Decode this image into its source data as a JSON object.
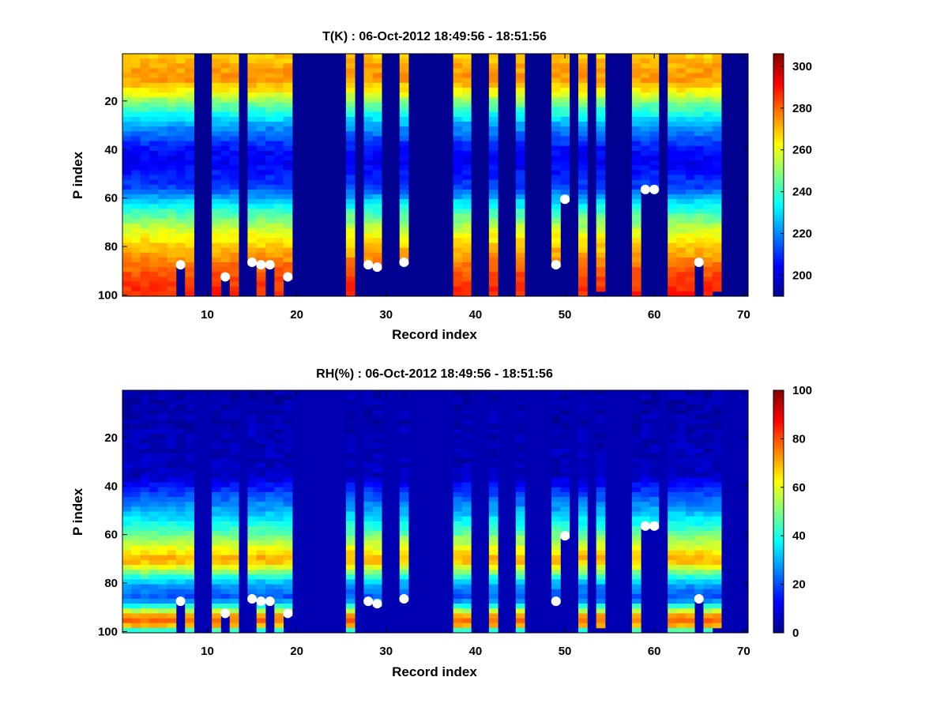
{
  "chart_data": [
    {
      "type": "heatmap",
      "title": "T(K) : 06-Oct-2012 18:49:56 - 18:51:56",
      "xlabel": "Record index",
      "ylabel": "P index",
      "xlim": [
        0.5,
        70.5
      ],
      "ylim": [
        1,
        100
      ],
      "xticks": [
        10,
        20,
        30,
        40,
        50,
        60,
        70
      ],
      "yticks": [
        20,
        40,
        60,
        80,
        100
      ],
      "colorbar": {
        "range": [
          190,
          306
        ],
        "ticks": [
          200,
          220,
          240,
          260,
          280,
          300
        ]
      },
      "background_value": 192,
      "profile_records": [
        1,
        2,
        3,
        4,
        5,
        6,
        7,
        8,
        11,
        12,
        13,
        15,
        16,
        17,
        18,
        19,
        26,
        28,
        29,
        32,
        38,
        39,
        42,
        45,
        49,
        50,
        52,
        54,
        58,
        59,
        60,
        62,
        63,
        64,
        65,
        66,
        67
      ],
      "records_to_index_100": [
        1,
        2,
        3,
        4,
        5,
        6,
        8,
        11,
        13,
        16,
        18,
        26,
        38,
        39,
        42,
        45,
        52,
        58,
        62,
        63,
        64,
        66
      ],
      "profile_shape": {
        "levels": [
          1,
          5,
          10,
          15,
          20,
          30,
          40,
          45,
          55,
          65,
          75,
          85,
          92,
          100
        ],
        "values": [
          268,
          272,
          275,
          265,
          248,
          222,
          205,
          203,
          212,
          240,
          262,
          276,
          284,
          288
        ]
      },
      "markers": [
        {
          "record": 7,
          "p": 88
        },
        {
          "record": 12,
          "p": 93
        },
        {
          "record": 15,
          "p": 87
        },
        {
          "record": 16,
          "p": 88
        },
        {
          "record": 17,
          "p": 88
        },
        {
          "record": 19,
          "p": 93
        },
        {
          "record": 28,
          "p": 88
        },
        {
          "record": 29,
          "p": 89
        },
        {
          "record": 32,
          "p": 87
        },
        {
          "record": 49,
          "p": 88
        },
        {
          "record": 50,
          "p": 61
        },
        {
          "record": 59,
          "p": 57
        },
        {
          "record": 60,
          "p": 57
        },
        {
          "record": 65,
          "p": 87
        }
      ]
    },
    {
      "type": "heatmap",
      "title": "RH(%) : 06-Oct-2012 18:49:56 - 18:51:56",
      "xlabel": "Record index",
      "ylabel": "P index",
      "xlim": [
        0.5,
        70.5
      ],
      "ylim": [
        1,
        100
      ],
      "xticks": [
        10,
        20,
        30,
        40,
        50,
        60,
        70
      ],
      "yticks": [
        20,
        40,
        60,
        80,
        100
      ],
      "colorbar": {
        "range": [
          0,
          100
        ],
        "ticks": [
          0,
          20,
          40,
          60,
          80,
          100
        ]
      },
      "background_value": 5,
      "profile_records": [
        1,
        2,
        3,
        4,
        5,
        6,
        7,
        8,
        11,
        12,
        13,
        15,
        16,
        17,
        18,
        19,
        26,
        28,
        29,
        32,
        38,
        39,
        42,
        45,
        49,
        50,
        52,
        54,
        58,
        59,
        60,
        62,
        63,
        64,
        65,
        66,
        67
      ],
      "records_to_index_100": [
        1,
        2,
        3,
        4,
        5,
        6,
        8,
        11,
        13,
        16,
        18,
        26,
        38,
        39,
        42,
        45,
        52,
        58,
        62,
        63,
        64,
        66
      ],
      "profile_shape": {
        "levels": [
          1,
          35,
          42,
          50,
          58,
          64,
          70,
          74,
          80,
          86,
          90,
          94,
          97,
          100
        ],
        "values": [
          4,
          6,
          18,
          30,
          45,
          58,
          72,
          55,
          28,
          20,
          48,
          80,
          70,
          30
        ]
      },
      "markers": [
        {
          "record": 7,
          "p": 88
        },
        {
          "record": 12,
          "p": 93
        },
        {
          "record": 15,
          "p": 87
        },
        {
          "record": 16,
          "p": 88
        },
        {
          "record": 17,
          "p": 88
        },
        {
          "record": 19,
          "p": 93
        },
        {
          "record": 28,
          "p": 88
        },
        {
          "record": 29,
          "p": 89
        },
        {
          "record": 32,
          "p": 87
        },
        {
          "record": 49,
          "p": 88
        },
        {
          "record": 50,
          "p": 61
        },
        {
          "record": 59,
          "p": 57
        },
        {
          "record": 60,
          "p": 57
        },
        {
          "record": 65,
          "p": 87
        }
      ]
    }
  ]
}
